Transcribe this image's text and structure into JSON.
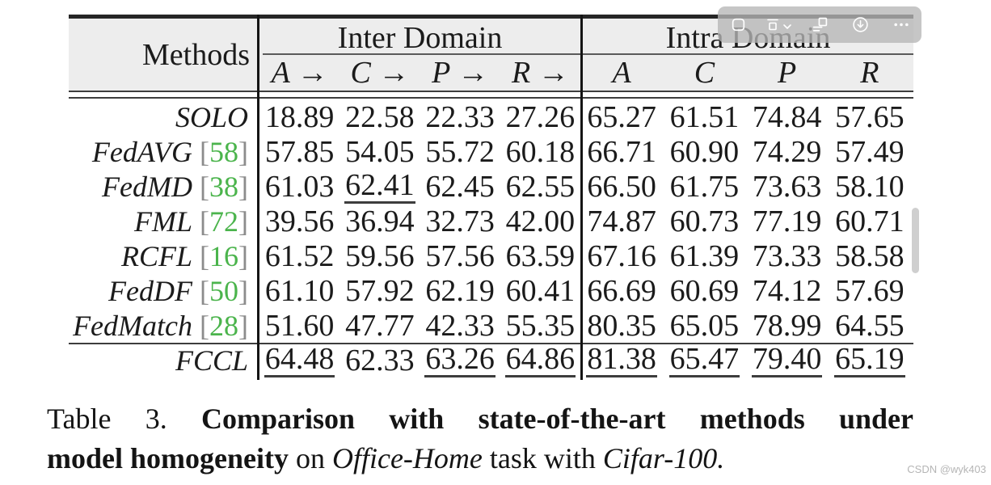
{
  "table": {
    "methods_label": "Methods",
    "groups": [
      {
        "label": "Inter Domain",
        "cols": [
          "A →",
          "C →",
          "P →",
          "R →"
        ]
      },
      {
        "label": "Intra Domain",
        "cols": [
          "A",
          "C",
          "P",
          "R"
        ]
      }
    ],
    "rows": [
      {
        "method": "SOLO",
        "cite": "",
        "inter": [
          "18.89",
          "22.58",
          "22.33",
          "27.26"
        ],
        "u_inter": [],
        "intra": [
          "65.27",
          "61.51",
          "74.84",
          "57.65"
        ],
        "u_intra": []
      },
      {
        "method": "FedAVG",
        "cite": "58",
        "inter": [
          "57.85",
          "54.05",
          "55.72",
          "60.18"
        ],
        "u_inter": [],
        "intra": [
          "66.71",
          "60.90",
          "74.29",
          "57.49"
        ],
        "u_intra": []
      },
      {
        "method": "FedMD",
        "cite": "38",
        "inter": [
          "61.03",
          "62.41",
          "62.45",
          "62.55"
        ],
        "u_inter": [
          1
        ],
        "intra": [
          "66.50",
          "61.75",
          "73.63",
          "58.10"
        ],
        "u_intra": []
      },
      {
        "method": "FML",
        "cite": "72",
        "inter": [
          "39.56",
          "36.94",
          "32.73",
          "42.00"
        ],
        "u_inter": [],
        "intra": [
          "74.87",
          "60.73",
          "77.19",
          "60.71"
        ],
        "u_intra": []
      },
      {
        "method": "RCFL",
        "cite": "16",
        "inter": [
          "61.52",
          "59.56",
          "57.56",
          "63.59"
        ],
        "u_inter": [],
        "intra": [
          "67.16",
          "61.39",
          "73.33",
          "58.58"
        ],
        "u_intra": []
      },
      {
        "method": "FedDF",
        "cite": "50",
        "inter": [
          "61.10",
          "57.92",
          "62.19",
          "60.41"
        ],
        "u_inter": [],
        "intra": [
          "66.69",
          "60.69",
          "74.12",
          "57.69"
        ],
        "u_intra": []
      },
      {
        "method": "FedMatch",
        "cite": "28",
        "inter": [
          "51.60",
          "47.77",
          "42.33",
          "55.35"
        ],
        "u_inter": [],
        "intra": [
          "80.35",
          "65.05",
          "78.99",
          "64.55"
        ],
        "u_intra": []
      },
      {
        "method": "FCCL",
        "cite": "",
        "inter": [
          "64.48",
          "62.33",
          "63.26",
          "64.86"
        ],
        "u_inter": [
          0,
          2,
          3
        ],
        "intra": [
          "81.38",
          "65.47",
          "79.40",
          "65.19"
        ],
        "u_intra": [
          0,
          1,
          2,
          3
        ]
      }
    ]
  },
  "caption": {
    "lines": [
      {
        "justify": true,
        "segments": [
          {
            "t": "Table 3.",
            "s": "plain"
          },
          {
            "t": "Comparison with state-of-the-art methods under",
            "s": "bold"
          }
        ]
      },
      {
        "justify": false,
        "segments": [
          {
            "t": "model homogeneity",
            "s": "bold"
          },
          {
            "t": "on",
            "s": "plain"
          },
          {
            "t": "Office-Home",
            "s": "italic"
          },
          {
            "t": "task with",
            "s": "plain"
          },
          {
            "t": "Cifar-100.",
            "s": "italic"
          }
        ]
      }
    ]
  },
  "toolbar": {
    "buttons": [
      {
        "name": "copy-image",
        "icon": "copy-image-icon"
      },
      {
        "name": "fit-width-dropdown",
        "icon": "fit-width-icon",
        "has_chevron": true
      },
      {
        "name": "reader-layout",
        "icon": "reader-layout-icon"
      },
      {
        "name": "download-image",
        "icon": "download-icon"
      },
      {
        "name": "more-options",
        "icon": "more-options-icon"
      }
    ]
  },
  "watermark": "CSDN @wyk403",
  "colors": {
    "citation_green": "#4bb44c",
    "bracket_gray": "#8c8c8c",
    "header_bg": "#ededed",
    "rule_dark": "#3d3d3d",
    "toolbar_bg": "#b6b6b6",
    "watermark_gray": "#b5b5b5"
  }
}
